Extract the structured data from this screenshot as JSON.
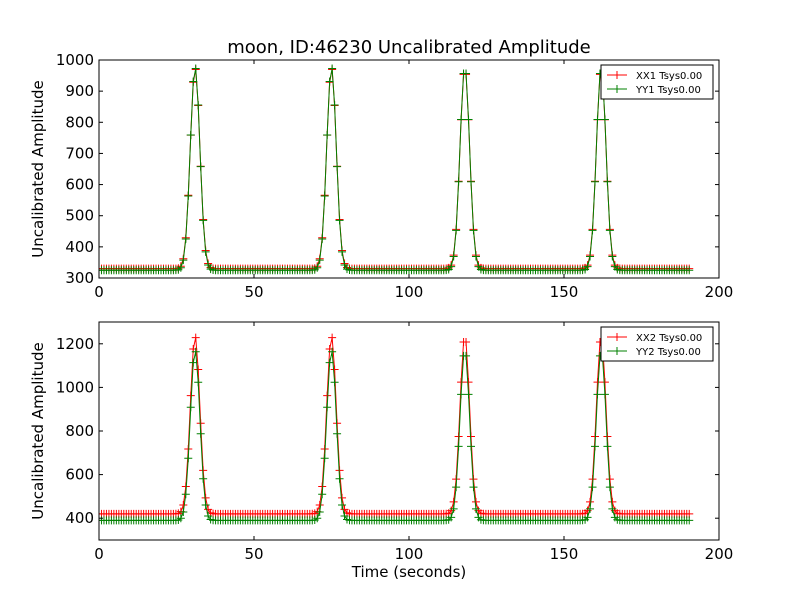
{
  "figure": {
    "title": "moon, ID:46230 Uncalibrated Amplitude"
  },
  "colors": {
    "background": "#ffffff",
    "series_xx": "#ff0000",
    "series_yy": "#008000",
    "axis": "#000000"
  },
  "chart_data": [
    {
      "type": "line",
      "title": "moon, ID:46230 Uncalibrated Amplitude",
      "xlabel": "",
      "ylabel": "Uncalibrated Amplitude",
      "xlim": [
        0,
        200
      ],
      "ylim": [
        300,
        1000
      ],
      "xticks": [
        0,
        50,
        100,
        150,
        200
      ],
      "yticks": [
        300,
        400,
        500,
        600,
        700,
        800,
        900,
        1000
      ],
      "grid": false,
      "legend_position": "top-right",
      "marker": "+",
      "series": [
        {
          "name": "XX1 Tsys0.00",
          "color": "#ff0000",
          "baseline": 330,
          "peaks": [
            {
              "x": 31,
              "y": 975
            },
            {
              "x": 75,
              "y": 975
            },
            {
              "x": 118,
              "y": 975
            },
            {
              "x": 162,
              "y": 975
            }
          ],
          "x_range": [
            0,
            191
          ],
          "sample_step": 0.8
        },
        {
          "name": "YY1 Tsys0.00",
          "color": "#008000",
          "baseline": 325,
          "peaks": [
            {
              "x": 31,
              "y": 978
            },
            {
              "x": 75,
              "y": 978
            },
            {
              "x": 118,
              "y": 978
            },
            {
              "x": 162,
              "y": 978
            }
          ],
          "x_range": [
            0,
            191
          ],
          "sample_step": 0.8
        }
      ]
    },
    {
      "type": "line",
      "title": "",
      "xlabel": "Time (seconds)",
      "ylabel": "Uncalibrated Amplitude",
      "xlim": [
        0,
        200
      ],
      "ylim": [
        300,
        1300
      ],
      "xticks": [
        0,
        50,
        100,
        150,
        200
      ],
      "yticks": [
        400,
        600,
        800,
        1000,
        1200
      ],
      "grid": false,
      "legend_position": "top-right",
      "marker": "+",
      "series": [
        {
          "name": "XX2 Tsys0.00",
          "color": "#ff0000",
          "baseline": 420,
          "peaks": [
            {
              "x": 31,
              "y": 1235
            },
            {
              "x": 75,
              "y": 1235
            },
            {
              "x": 118,
              "y": 1235
            },
            {
              "x": 162,
              "y": 1235
            }
          ],
          "x_range": [
            0,
            191
          ],
          "sample_step": 0.8
        },
        {
          "name": "YY2 Tsys0.00",
          "color": "#008000",
          "baseline": 390,
          "peaks": [
            {
              "x": 31,
              "y": 1170
            },
            {
              "x": 75,
              "y": 1170
            },
            {
              "x": 118,
              "y": 1170
            },
            {
              "x": 162,
              "y": 1170
            }
          ],
          "x_range": [
            0,
            191
          ],
          "sample_step": 0.8
        }
      ]
    }
  ]
}
